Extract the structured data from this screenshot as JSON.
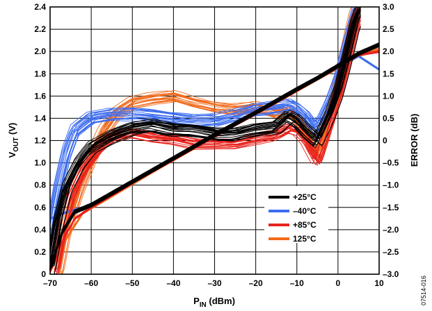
{
  "chart_data": {
    "type": "line",
    "x_label": {
      "main": "P",
      "sub": "IN",
      "rest": " (dBm)"
    },
    "y_label": {
      "main": "V",
      "sub": "OUT",
      "rest": " (V)"
    },
    "y2_label": "ERROR (dB)",
    "xlim": [
      -70,
      10
    ],
    "ylim": [
      0,
      2.4
    ],
    "y2lim": [
      -3.0,
      3.0
    ],
    "x_ticks": [
      -70,
      -60,
      -50,
      -40,
      -30,
      -20,
      -10,
      0,
      10
    ],
    "x_tick_labels": [
      "–70",
      "–60",
      "–50",
      "–40",
      "–30",
      "–20",
      "–10",
      "0",
      "10"
    ],
    "y_ticks": [
      0,
      0.2,
      0.4,
      0.6,
      0.8,
      1.0,
      1.2,
      1.4,
      1.6,
      1.8,
      2.0,
      2.2,
      2.4
    ],
    "y_tick_labels": [
      "0",
      "0.2",
      "0.4",
      "0.6",
      "0.8",
      "1.0",
      "1.2",
      "1.4",
      "1.6",
      "1.8",
      "2.0",
      "2.2",
      "2.4"
    ],
    "y2_ticks": [
      -3.0,
      -2.5,
      -2.0,
      -1.5,
      -1.0,
      -0.5,
      0,
      0.5,
      1.0,
      1.5,
      2.0,
      2.5,
      3.0
    ],
    "y2_tick_labels": [
      "–3.0",
      "–2.5",
      "–2.0",
      "–1.5",
      "–1.0",
      "–0.5",
      "0",
      "0.5",
      "1.0",
      "1.5",
      "2.0",
      "2.5",
      "3.0"
    ],
    "grid": true,
    "legend_position": "bottom-right",
    "figure_id": "07514-016",
    "series": [
      {
        "name": "+25°C",
        "color": "#000000",
        "vout": [
          [
            -70,
            0.05
          ],
          [
            -67,
            0.38
          ],
          [
            -64,
            0.56
          ],
          [
            -60,
            0.62
          ],
          [
            -50,
            0.83
          ],
          [
            -40,
            1.04
          ],
          [
            -30,
            1.25
          ],
          [
            -20,
            1.45
          ],
          [
            -10,
            1.66
          ],
          [
            -5,
            1.76
          ],
          [
            0,
            1.87
          ],
          [
            5,
            1.98
          ],
          [
            10,
            2.06
          ]
        ],
        "error": [
          [
            -70,
            -2.9
          ],
          [
            -68,
            -1.8
          ],
          [
            -66,
            -1.05
          ],
          [
            -63,
            -0.5
          ],
          [
            -60,
            -0.15
          ],
          [
            -55,
            0.1
          ],
          [
            -50,
            0.28
          ],
          [
            -45,
            0.35
          ],
          [
            -40,
            0.25
          ],
          [
            -35,
            0.22
          ],
          [
            -30,
            0.15
          ],
          [
            -25,
            0.15
          ],
          [
            -20,
            0.25
          ],
          [
            -15,
            0.3
          ],
          [
            -12,
            0.55
          ],
          [
            -10,
            0.45
          ],
          [
            -8,
            0.25
          ],
          [
            -5,
            0.0
          ],
          [
            -4,
            0.2
          ],
          [
            -2,
            0.6
          ],
          [
            0,
            1.1
          ],
          [
            2,
            1.8
          ],
          [
            4,
            2.6
          ],
          [
            5.5,
            3.0
          ]
        ]
      },
      {
        "name": "–40°C",
        "color": "#3c6cf0",
        "vout": [
          [
            -70,
            0.5
          ],
          [
            -66,
            0.56
          ],
          [
            -62,
            0.6
          ],
          [
            -55,
            0.72
          ],
          [
            -45,
            0.93
          ],
          [
            -35,
            1.14
          ],
          [
            -25,
            1.34
          ],
          [
            -15,
            1.55
          ],
          [
            -5,
            1.76
          ],
          [
            0,
            1.86
          ],
          [
            5,
            1.96
          ],
          [
            10,
            1.84
          ]
        ],
        "error": [
          [
            -70,
            -2.1
          ],
          [
            -68,
            -1.1
          ],
          [
            -66,
            -0.3
          ],
          [
            -64,
            0.2
          ],
          [
            -60,
            0.5
          ],
          [
            -55,
            0.6
          ],
          [
            -50,
            0.6
          ],
          [
            -45,
            0.55
          ],
          [
            -40,
            0.5
          ],
          [
            -35,
            0.45
          ],
          [
            -30,
            0.45
          ],
          [
            -25,
            0.55
          ],
          [
            -20,
            0.7
          ],
          [
            -15,
            0.75
          ],
          [
            -12,
            0.8
          ],
          [
            -10,
            0.7
          ],
          [
            -8,
            0.55
          ],
          [
            -6,
            0.3
          ],
          [
            -4,
            0.4
          ],
          [
            -2,
            0.8
          ],
          [
            0,
            1.3
          ],
          [
            2,
            2.0
          ],
          [
            4,
            2.7
          ],
          [
            5,
            3.0
          ]
        ]
      },
      {
        "name": "+85°C",
        "color": "#e8231c",
        "vout": [
          [
            -70,
            0.02
          ],
          [
            -67,
            0.3
          ],
          [
            -64,
            0.5
          ],
          [
            -60,
            0.6
          ],
          [
            -50,
            0.82
          ],
          [
            -40,
            1.03
          ],
          [
            -30,
            1.24
          ],
          [
            -20,
            1.44
          ],
          [
            -10,
            1.65
          ],
          [
            0,
            1.86
          ],
          [
            5,
            1.97
          ],
          [
            10,
            2.0
          ]
        ],
        "error": [
          [
            -69,
            -3.0
          ],
          [
            -67,
            -2.0
          ],
          [
            -65,
            -1.3
          ],
          [
            -62,
            -0.7
          ],
          [
            -58,
            -0.2
          ],
          [
            -55,
            0.05
          ],
          [
            -50,
            0.15
          ],
          [
            -45,
            0.05
          ],
          [
            -40,
            0.0
          ],
          [
            -35,
            -0.1
          ],
          [
            -30,
            -0.1
          ],
          [
            -25,
            -0.1
          ],
          [
            -20,
            0.0
          ],
          [
            -15,
            0.1
          ],
          [
            -12,
            0.25
          ],
          [
            -10,
            0.2
          ],
          [
            -8,
            0.0
          ],
          [
            -6,
            -0.35
          ],
          [
            -5,
            -0.5
          ],
          [
            -4,
            -0.2
          ],
          [
            -2,
            0.4
          ],
          [
            0,
            1.0
          ],
          [
            2,
            1.7
          ],
          [
            4,
            2.5
          ],
          [
            5.5,
            3.0
          ]
        ]
      },
      {
        "name": "125°C",
        "color": "#f26b1d",
        "vout": [
          [
            -70,
            0.02
          ],
          [
            -66,
            0.32
          ],
          [
            -62,
            0.55
          ],
          [
            -55,
            0.7
          ],
          [
            -45,
            0.92
          ],
          [
            -35,
            1.13
          ],
          [
            -25,
            1.34
          ],
          [
            -15,
            1.54
          ],
          [
            -5,
            1.75
          ],
          [
            0,
            1.85
          ],
          [
            5,
            1.96
          ],
          [
            10,
            2.02
          ]
        ],
        "error": [
          [
            -68,
            -3.0
          ],
          [
            -66,
            -2.0
          ],
          [
            -63,
            -1.1
          ],
          [
            -60,
            -0.4
          ],
          [
            -57,
            0.2
          ],
          [
            -54,
            0.6
          ],
          [
            -50,
            0.85
          ],
          [
            -45,
            0.95
          ],
          [
            -40,
            1.0
          ],
          [
            -35,
            0.85
          ],
          [
            -30,
            0.75
          ],
          [
            -25,
            0.7
          ],
          [
            -20,
            0.75
          ],
          [
            -15,
            0.6
          ],
          [
            -12,
            0.65
          ],
          [
            -10,
            0.5
          ],
          [
            -8,
            0.2
          ],
          [
            -6,
            -0.2
          ],
          [
            -5,
            -0.3
          ],
          [
            -4,
            -0.1
          ],
          [
            -2,
            0.5
          ],
          [
            0,
            1.2
          ],
          [
            2,
            2.0
          ],
          [
            4,
            2.8
          ],
          [
            5,
            3.0
          ]
        ]
      }
    ]
  }
}
